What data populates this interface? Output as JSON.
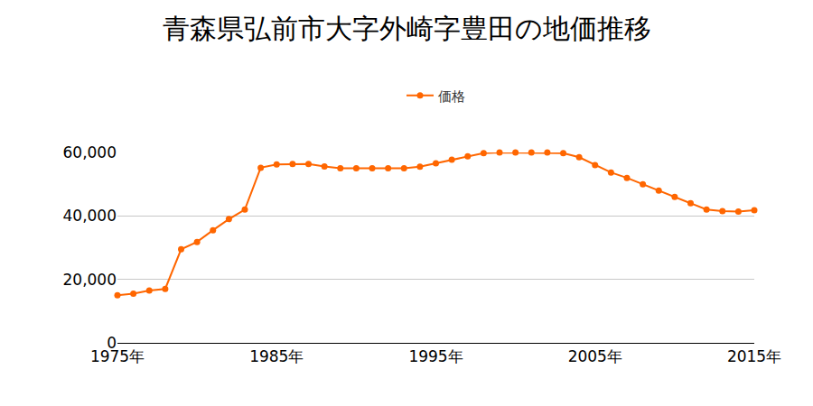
{
  "chart_data": {
    "type": "line",
    "title": "青森県弘前市大字外崎字豊田の地価推移",
    "x": [
      1975,
      1976,
      1977,
      1978,
      1979,
      1980,
      1981,
      1982,
      1983,
      1984,
      1985,
      1986,
      1987,
      1988,
      1989,
      1990,
      1991,
      1992,
      1993,
      1994,
      1995,
      1996,
      1997,
      1998,
      1999,
      2000,
      2001,
      2002,
      2003,
      2004,
      2005,
      2006,
      2007,
      2008,
      2009,
      2010,
      2011,
      2012,
      2013,
      2014,
      2015
    ],
    "series": [
      {
        "name": "価格",
        "color": "#ff6600",
        "marker": "circle",
        "values": [
          15000,
          15500,
          16500,
          17000,
          29500,
          31800,
          35500,
          39000,
          42000,
          55200,
          56200,
          56400,
          56400,
          55600,
          55000,
          55000,
          55000,
          55000,
          55000,
          55500,
          56600,
          57700,
          58800,
          59800,
          60000,
          60000,
          60000,
          60000,
          59800,
          58500,
          56000,
          53700,
          52000,
          50000,
          48000,
          46000,
          44000,
          42000,
          41500,
          41400,
          41800
        ]
      }
    ],
    "xlim": [
      1975,
      2015
    ],
    "xticks": [
      {
        "value": 1975,
        "label": "1975年"
      },
      {
        "value": 1985,
        "label": "1985年"
      },
      {
        "value": 1995,
        "label": "1995年"
      },
      {
        "value": 2005,
        "label": "2005年"
      },
      {
        "value": 2015,
        "label": "2015年"
      }
    ],
    "ylim": [
      0,
      60000
    ],
    "yticks": [
      0,
      {
        "value": 20000,
        "label": "20,000"
      },
      {
        "value": 40000,
        "label": "40,000"
      },
      {
        "value": 60000,
        "label": "60,000"
      }
    ],
    "grid": true,
    "legend": "top"
  }
}
